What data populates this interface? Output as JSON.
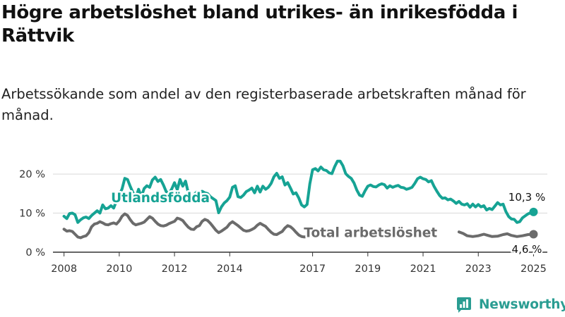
{
  "title": "Högre arbetslöshet bland utrikes- än inrikesfödda i Rättvik",
  "subtitle": "Arbetssökande som andel av den registerbaserade arbetskraften månad för månad.",
  "brand": {
    "name": "Newsworthy",
    "logo_icon": "bar-chart-logo-icon"
  },
  "colors": {
    "foreign_born": "#16a394",
    "total": "#6b6b6b",
    "grid": "#d9d9d9",
    "axis": "#333333"
  },
  "chart_data": {
    "type": "line",
    "x_unit": "year (decimal)",
    "y_unit": "percent",
    "xlim": [
      2007.6,
      2025.5
    ],
    "ylim": [
      0,
      23.8
    ],
    "x_tick_values": [
      2008,
      2010,
      2012,
      2014,
      2017,
      2019,
      2021,
      2023,
      2025
    ],
    "x_tick_labels": [
      "2008",
      "2010",
      "2012",
      "2014",
      "2017",
      "2019",
      "2021",
      "2023",
      "2025"
    ],
    "y_tick_values": [
      0,
      10,
      20
    ],
    "y_tick_labels": [
      "0 %",
      "10 %",
      "20 %"
    ],
    "grid": "horizontal",
    "legend": "direct labels on lines",
    "series": [
      {
        "name": "Utlandsfödda",
        "label_at": [
          2009.7,
          12.8
        ],
        "end_label": "10,3 %",
        "points": [
          [
            2008.0,
            9.2
          ],
          [
            2008.1,
            8.6
          ],
          [
            2008.2,
            9.9
          ],
          [
            2008.3,
            10.0
          ],
          [
            2008.4,
            9.6
          ],
          [
            2008.5,
            7.6
          ],
          [
            2008.6,
            8.3
          ],
          [
            2008.7,
            8.8
          ],
          [
            2008.8,
            9.0
          ],
          [
            2008.9,
            8.6
          ],
          [
            2009.0,
            9.4
          ],
          [
            2009.2,
            10.6
          ],
          [
            2009.3,
            10.0
          ],
          [
            2009.4,
            12.1
          ],
          [
            2009.5,
            11.1
          ],
          [
            2009.6,
            11.3
          ],
          [
            2009.7,
            11.9
          ],
          [
            2009.8,
            11.3
          ],
          [
            2009.9,
            13.1
          ],
          [
            2010.0,
            14.6
          ],
          [
            2010.1,
            16.2
          ],
          [
            2010.2,
            18.9
          ],
          [
            2010.3,
            18.6
          ],
          [
            2010.4,
            16.8
          ],
          [
            2010.5,
            15.2
          ],
          [
            2010.6,
            13.9
          ],
          [
            2010.7,
            16.1
          ],
          [
            2010.8,
            14.2
          ],
          [
            2010.9,
            16.3
          ],
          [
            2011.0,
            17.0
          ],
          [
            2011.1,
            16.6
          ],
          [
            2011.2,
            18.5
          ],
          [
            2011.3,
            19.2
          ],
          [
            2011.4,
            18.1
          ],
          [
            2011.5,
            18.6
          ],
          [
            2011.6,
            17.2
          ],
          [
            2011.7,
            15.5
          ],
          [
            2011.8,
            15.0
          ],
          [
            2011.9,
            16.2
          ],
          [
            2012.0,
            17.8
          ],
          [
            2012.1,
            16.0
          ],
          [
            2012.2,
            18.6
          ],
          [
            2012.3,
            16.9
          ],
          [
            2012.4,
            18.2
          ],
          [
            2012.5,
            15.2
          ],
          [
            2012.6,
            14.1
          ],
          [
            2012.7,
            14.7
          ],
          [
            2012.8,
            15.4
          ],
          [
            2012.9,
            14.8
          ],
          [
            2013.0,
            15.6
          ],
          [
            2013.1,
            15.2
          ],
          [
            2013.2,
            15.0
          ],
          [
            2013.3,
            14.2
          ],
          [
            2013.4,
            13.7
          ],
          [
            2013.5,
            13.2
          ],
          [
            2013.6,
            10.1
          ],
          [
            2013.7,
            11.6
          ],
          [
            2013.8,
            12.6
          ],
          [
            2013.9,
            13.2
          ],
          [
            2014.0,
            14.1
          ],
          [
            2014.1,
            16.6
          ],
          [
            2014.2,
            17.0
          ],
          [
            2014.3,
            14.2
          ],
          [
            2014.4,
            14.0
          ],
          [
            2014.5,
            14.6
          ],
          [
            2014.6,
            15.5
          ],
          [
            2014.7,
            15.9
          ],
          [
            2014.8,
            16.4
          ],
          [
            2014.9,
            15.2
          ],
          [
            2015.0,
            16.9
          ],
          [
            2015.1,
            15.4
          ],
          [
            2015.2,
            16.9
          ],
          [
            2015.3,
            16.1
          ],
          [
            2015.4,
            16.6
          ],
          [
            2015.5,
            17.6
          ],
          [
            2015.6,
            19.3
          ],
          [
            2015.7,
            20.2
          ],
          [
            2015.8,
            18.9
          ],
          [
            2015.9,
            19.3
          ],
          [
            2016.0,
            17.2
          ],
          [
            2016.1,
            17.8
          ],
          [
            2016.2,
            16.4
          ],
          [
            2016.3,
            14.9
          ],
          [
            2016.4,
            15.2
          ],
          [
            2016.5,
            13.9
          ],
          [
            2016.6,
            12.1
          ],
          [
            2016.7,
            11.6
          ],
          [
            2016.8,
            12.2
          ],
          [
            2016.9,
            17.5
          ],
          [
            2017.0,
            21.1
          ],
          [
            2017.1,
            21.4
          ],
          [
            2017.2,
            20.8
          ],
          [
            2017.3,
            21.8
          ],
          [
            2017.4,
            21.1
          ],
          [
            2017.5,
            20.9
          ],
          [
            2017.6,
            20.3
          ],
          [
            2017.7,
            20.1
          ],
          [
            2017.8,
            21.9
          ],
          [
            2017.9,
            23.3
          ],
          [
            2018.0,
            23.3
          ],
          [
            2018.1,
            22.1
          ],
          [
            2018.2,
            20.1
          ],
          [
            2018.3,
            19.4
          ],
          [
            2018.4,
            18.9
          ],
          [
            2018.5,
            17.7
          ],
          [
            2018.6,
            15.9
          ],
          [
            2018.7,
            14.6
          ],
          [
            2018.8,
            14.3
          ],
          [
            2018.9,
            15.7
          ],
          [
            2019.0,
            16.9
          ],
          [
            2019.1,
            17.2
          ],
          [
            2019.2,
            16.8
          ],
          [
            2019.3,
            16.7
          ],
          [
            2019.4,
            17.2
          ],
          [
            2019.5,
            17.5
          ],
          [
            2019.6,
            17.3
          ],
          [
            2019.7,
            16.4
          ],
          [
            2019.8,
            17.0
          ],
          [
            2019.9,
            16.6
          ],
          [
            2020.0,
            16.9
          ],
          [
            2020.1,
            17.1
          ],
          [
            2020.2,
            16.6
          ],
          [
            2020.3,
            16.5
          ],
          [
            2020.4,
            16.1
          ],
          [
            2020.5,
            16.3
          ],
          [
            2020.6,
            16.6
          ],
          [
            2020.7,
            17.6
          ],
          [
            2020.8,
            18.8
          ],
          [
            2020.9,
            19.2
          ],
          [
            2021.0,
            18.8
          ],
          [
            2021.1,
            18.6
          ],
          [
            2021.2,
            18.0
          ],
          [
            2021.3,
            18.3
          ],
          [
            2021.4,
            16.8
          ],
          [
            2021.5,
            15.6
          ],
          [
            2021.6,
            14.5
          ],
          [
            2021.7,
            13.8
          ],
          [
            2021.8,
            13.9
          ],
          [
            2021.9,
            13.4
          ],
          [
            2022.0,
            13.6
          ],
          [
            2022.1,
            13.1
          ],
          [
            2022.2,
            12.5
          ],
          [
            2022.3,
            13.0
          ],
          [
            2022.4,
            12.3
          ],
          [
            2022.5,
            12.1
          ],
          [
            2022.6,
            12.4
          ],
          [
            2022.7,
            11.5
          ],
          [
            2022.8,
            12.3
          ],
          [
            2022.9,
            11.6
          ],
          [
            2023.0,
            12.2
          ],
          [
            2023.1,
            11.6
          ],
          [
            2023.2,
            11.9
          ],
          [
            2023.3,
            10.8
          ],
          [
            2023.4,
            11.2
          ],
          [
            2023.5,
            10.9
          ],
          [
            2023.6,
            11.8
          ],
          [
            2023.7,
            12.7
          ],
          [
            2023.8,
            12.1
          ],
          [
            2023.9,
            12.3
          ],
          [
            2024.0,
            10.4
          ],
          [
            2024.1,
            9.1
          ],
          [
            2024.2,
            8.5
          ],
          [
            2024.3,
            8.4
          ],
          [
            2024.4,
            7.6
          ],
          [
            2024.5,
            7.8
          ],
          [
            2024.6,
            8.8
          ],
          [
            2024.7,
            9.3
          ],
          [
            2024.8,
            9.8
          ],
          [
            2024.9,
            10.1
          ],
          [
            2025.0,
            10.3
          ]
        ]
      },
      {
        "name": "Total arbetslöshet",
        "label_at": [
          2019.1,
          3.9
        ],
        "end_label": "4,6 %",
        "points": [
          [
            2008.0,
            5.9
          ],
          [
            2008.1,
            5.4
          ],
          [
            2008.2,
            5.5
          ],
          [
            2008.3,
            5.3
          ],
          [
            2008.4,
            4.6
          ],
          [
            2008.5,
            3.9
          ],
          [
            2008.6,
            3.7
          ],
          [
            2008.7,
            4.0
          ],
          [
            2008.8,
            4.2
          ],
          [
            2008.9,
            5.0
          ],
          [
            2009.0,
            6.5
          ],
          [
            2009.1,
            7.2
          ],
          [
            2009.2,
            7.4
          ],
          [
            2009.3,
            7.8
          ],
          [
            2009.4,
            7.5
          ],
          [
            2009.5,
            7.1
          ],
          [
            2009.6,
            7.0
          ],
          [
            2009.7,
            7.3
          ],
          [
            2009.8,
            7.5
          ],
          [
            2009.9,
            7.2
          ],
          [
            2010.0,
            8.0
          ],
          [
            2010.1,
            9.2
          ],
          [
            2010.2,
            9.8
          ],
          [
            2010.3,
            9.4
          ],
          [
            2010.4,
            8.3
          ],
          [
            2010.5,
            7.4
          ],
          [
            2010.6,
            7.0
          ],
          [
            2010.7,
            7.2
          ],
          [
            2010.8,
            7.4
          ],
          [
            2010.9,
            7.7
          ],
          [
            2011.0,
            8.4
          ],
          [
            2011.1,
            9.1
          ],
          [
            2011.2,
            8.7
          ],
          [
            2011.3,
            7.9
          ],
          [
            2011.4,
            7.2
          ],
          [
            2011.5,
            6.8
          ],
          [
            2011.6,
            6.7
          ],
          [
            2011.7,
            6.9
          ],
          [
            2011.8,
            7.3
          ],
          [
            2011.9,
            7.6
          ],
          [
            2012.0,
            7.9
          ],
          [
            2012.1,
            8.7
          ],
          [
            2012.2,
            8.5
          ],
          [
            2012.3,
            8.1
          ],
          [
            2012.4,
            7.2
          ],
          [
            2012.5,
            6.4
          ],
          [
            2012.6,
            5.9
          ],
          [
            2012.7,
            5.8
          ],
          [
            2012.8,
            6.5
          ],
          [
            2012.9,
            6.8
          ],
          [
            2013.0,
            7.9
          ],
          [
            2013.1,
            8.4
          ],
          [
            2013.2,
            8.1
          ],
          [
            2013.3,
            7.4
          ],
          [
            2013.4,
            6.5
          ],
          [
            2013.5,
            5.6
          ],
          [
            2013.6,
            5.0
          ],
          [
            2013.7,
            5.4
          ],
          [
            2013.8,
            5.9
          ],
          [
            2013.9,
            6.4
          ],
          [
            2014.0,
            7.3
          ],
          [
            2014.1,
            7.8
          ],
          [
            2014.2,
            7.3
          ],
          [
            2014.3,
            6.8
          ],
          [
            2014.4,
            6.2
          ],
          [
            2014.5,
            5.6
          ],
          [
            2014.6,
            5.4
          ],
          [
            2014.7,
            5.5
          ],
          [
            2014.8,
            5.8
          ],
          [
            2014.9,
            6.2
          ],
          [
            2015.0,
            6.9
          ],
          [
            2015.1,
            7.4
          ],
          [
            2015.2,
            7.0
          ],
          [
            2015.3,
            6.6
          ],
          [
            2015.4,
            5.8
          ],
          [
            2015.5,
            5.1
          ],
          [
            2015.6,
            4.6
          ],
          [
            2015.7,
            4.5
          ],
          [
            2015.8,
            4.9
          ],
          [
            2015.9,
            5.3
          ],
          [
            2016.0,
            6.2
          ],
          [
            2016.1,
            6.8
          ],
          [
            2016.2,
            6.5
          ],
          [
            2016.3,
            5.9
          ],
          [
            2016.4,
            5.1
          ],
          [
            2016.5,
            4.4
          ],
          [
            2016.6,
            4.0
          ],
          [
            2016.7,
            3.9
          ],
          [
            2016.8,
            4.0
          ]
        ],
        "points_tail": [
          [
            2020.6,
            4.8
          ],
          [
            2020.8,
            5.4
          ],
          [
            2020.95,
            5.3
          ],
          [
            2021.1,
            5.0
          ]
        ],
        "points_end": [
          [
            2022.3,
            5.2
          ],
          [
            2022.45,
            4.8
          ],
          [
            2022.6,
            4.2
          ],
          [
            2022.8,
            4.0
          ],
          [
            2023.0,
            4.2
          ],
          [
            2023.2,
            4.6
          ],
          [
            2023.35,
            4.3
          ],
          [
            2023.5,
            4.0
          ],
          [
            2023.7,
            4.1
          ],
          [
            2023.9,
            4.5
          ],
          [
            2024.05,
            4.7
          ],
          [
            2024.2,
            4.3
          ],
          [
            2024.4,
            4.0
          ],
          [
            2024.6,
            4.2
          ],
          [
            2024.8,
            4.5
          ],
          [
            2025.0,
            4.6
          ]
        ]
      }
    ]
  }
}
